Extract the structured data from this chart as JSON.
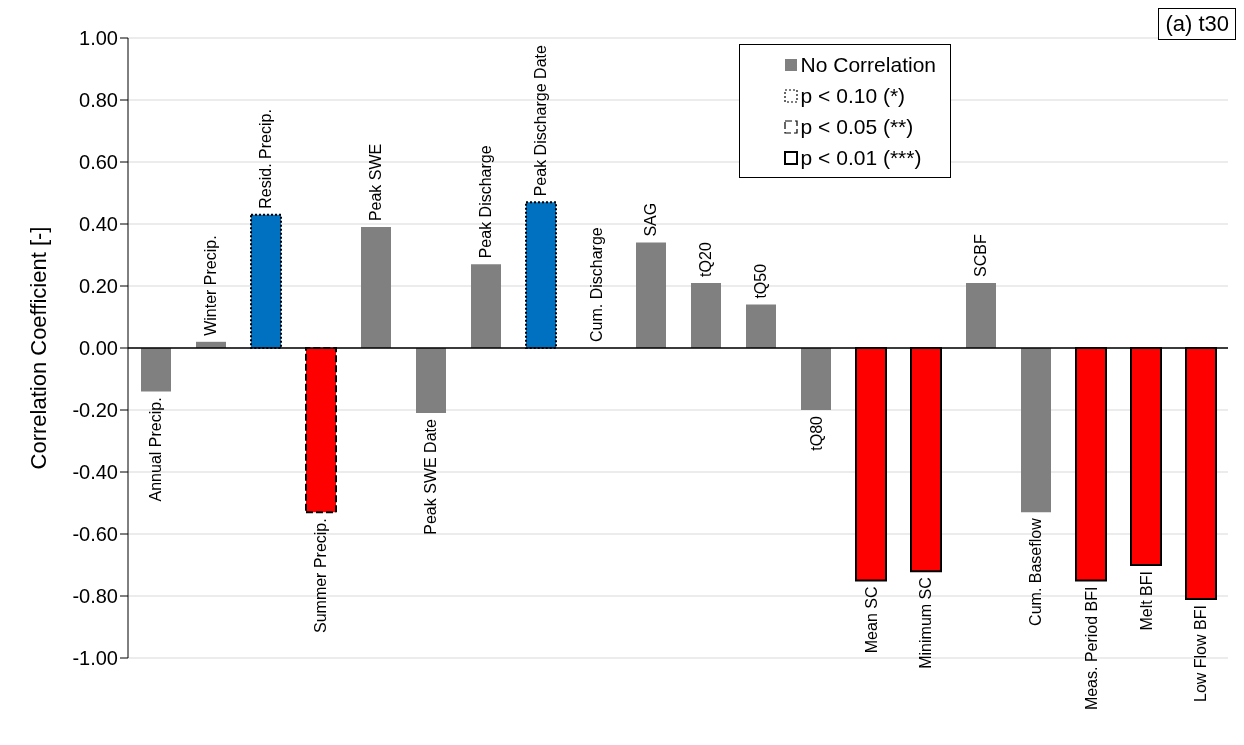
{
  "chart_data": {
    "type": "bar",
    "ylabel": "Correlation Coefficient [-]",
    "annotations": [
      "(a) t30"
    ],
    "categories": [
      "Annual Precip.",
      "Winter Precip.",
      "Resid. Precip.",
      "Summer Precip.",
      "Peak SWE",
      "Peak SWE Date",
      "Peak Discharge",
      "Peak Discharge Date",
      "Cum. Discharge",
      "SAG",
      "tQ20",
      "tQ50",
      "tQ80",
      "Mean SC",
      "Minimum SC",
      "SCBF",
      "Cum. Baseflow",
      "Meas. Period BFI",
      "Melt BFI",
      "Low Flow BFI"
    ],
    "stacked": true,
    "series": [
      {
        "name": "No Correlation",
        "color": "#808080",
        "values": [
          -0.14,
          0.02,
          null,
          null,
          0.39,
          -0.21,
          0.27,
          null,
          0,
          0.34,
          0.21,
          0.14,
          -0.2,
          null,
          null,
          0.21,
          -0.53,
          null,
          null,
          null
        ]
      },
      {
        "name": "p < 0.10 (*)",
        "line_style": "dotted",
        "colors": [
          null,
          null,
          "#0070c0",
          null,
          null,
          null,
          null,
          "#0070c0",
          null,
          null,
          null,
          null,
          null,
          null,
          null,
          null,
          null,
          null,
          null,
          null
        ],
        "values": [
          null,
          null,
          0.43,
          null,
          null,
          null,
          null,
          0.47,
          null,
          null,
          null,
          null,
          null,
          null,
          null,
          null,
          null,
          null,
          null,
          null
        ]
      },
      {
        "name": "p < 0.05 (**)",
        "line_style": "dashed",
        "colors": [
          null,
          null,
          null,
          "#ff0000",
          null,
          null,
          null,
          null,
          null,
          null,
          null,
          null,
          null,
          null,
          null,
          null,
          null,
          null,
          null,
          null
        ],
        "values": [
          null,
          null,
          null,
          -0.53,
          null,
          null,
          null,
          null,
          null,
          null,
          null,
          null,
          null,
          null,
          null,
          null,
          null,
          null,
          null,
          null
        ]
      },
      {
        "name": "p < 0.01 (***)",
        "line_style": "solid",
        "colors": [
          null,
          null,
          null,
          null,
          null,
          null,
          null,
          null,
          null,
          null,
          null,
          null,
          null,
          "#ff0000",
          "#ff0000",
          null,
          null,
          "#ff0000",
          "#ff0000",
          "#ff0000"
        ],
        "values": [
          null,
          null,
          null,
          null,
          null,
          null,
          null,
          null,
          null,
          null,
          null,
          null,
          null,
          -0.75,
          -0.72,
          null,
          null,
          -0.75,
          -0.7,
          -0.81
        ]
      }
    ],
    "ylim": [
      -1,
      1
    ],
    "yticks": [
      {
        "value": -1,
        "label": "-1.00"
      },
      {
        "value": -0.8,
        "label": "-0.80"
      },
      {
        "value": -0.6,
        "label": "-0.60"
      },
      {
        "value": -0.4,
        "label": "-0.40"
      },
      {
        "value": -0.2,
        "label": "-0.20"
      },
      {
        "value": 0,
        "label": "0.00"
      },
      {
        "value": 0.2,
        "label": "0.20"
      },
      {
        "value": 0.4,
        "label": "0.40"
      },
      {
        "value": 0.6,
        "label": "0.60"
      },
      {
        "value": 0.8,
        "label": "0.80"
      },
      {
        "value": 1,
        "label": "1.00"
      }
    ],
    "grid": "y",
    "legend": "top right"
  }
}
